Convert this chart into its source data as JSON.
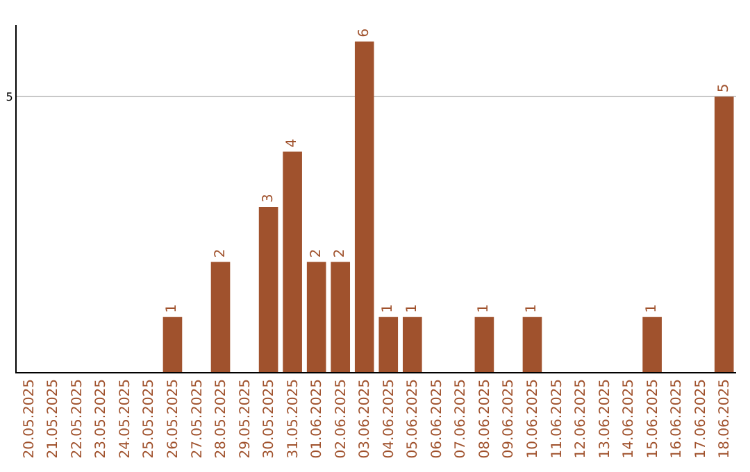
{
  "chart_data": {
    "type": "bar",
    "categories": [
      "20.05.2025",
      "21.05.2025",
      "22.05.2025",
      "23.05.2025",
      "24.05.2025",
      "25.05.2025",
      "26.05.2025",
      "27.05.2025",
      "28.05.2025",
      "29.05.2025",
      "30.05.2025",
      "31.05.2025",
      "01.06.2025",
      "02.06.2025",
      "03.06.2025",
      "04.06.2025",
      "05.06.2025",
      "06.06.2025",
      "07.06.2025",
      "08.06.2025",
      "09.06.2025",
      "10.06.2025",
      "11.06.2025",
      "12.06.2025",
      "13.06.2025",
      "14.06.2025",
      "15.06.2025",
      "16.06.2025",
      "17.06.2025",
      "18.06.2025"
    ],
    "values": [
      0,
      0,
      0,
      0,
      0,
      0,
      1,
      0,
      2,
      0,
      3,
      4,
      2,
      2,
      6,
      1,
      1,
      0,
      0,
      1,
      0,
      1,
      0,
      0,
      0,
      0,
      1,
      0,
      0,
      5
    ],
    "value_labels": [
      null,
      null,
      null,
      null,
      null,
      null,
      "1",
      null,
      "2",
      null,
      "3",
      "4",
      "2",
      "2",
      "6",
      "1",
      "1",
      null,
      null,
      "1",
      null,
      "1",
      null,
      null,
      null,
      null,
      "1",
      null,
      null,
      "5"
    ],
    "color": "#a0522d",
    "ylim": [
      0,
      6.3
    ],
    "yticks": [
      5
    ],
    "grid": "y",
    "legend": false
  }
}
